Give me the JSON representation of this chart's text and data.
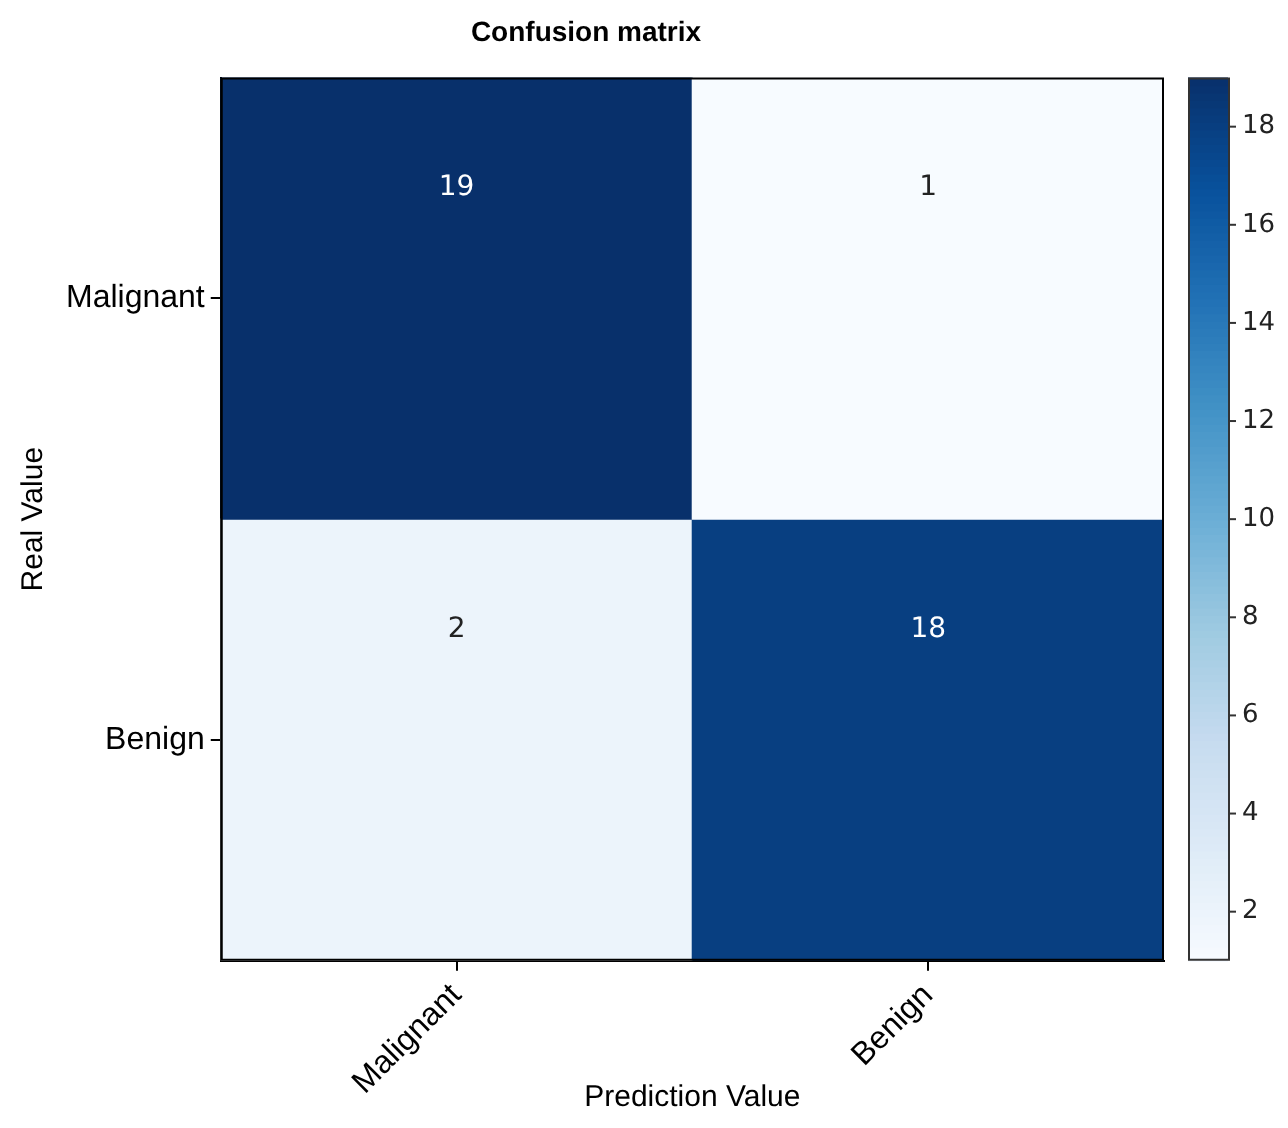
{
  "chart_data": {
    "type": "heatmap",
    "title": "Confusion matrix",
    "xlabel": "Prediction Value",
    "ylabel": "Real Value",
    "categories": [
      "Malignant",
      "Benign"
    ],
    "y_categories": [
      "Malignant",
      "Benign"
    ],
    "cells": [
      [
        19,
        1
      ],
      [
        2,
        18
      ]
    ],
    "clim": [
      1,
      19
    ],
    "cticks": [
      2,
      4,
      6,
      8,
      10,
      12,
      14,
      16,
      18
    ],
    "data_labels": true
  }
}
